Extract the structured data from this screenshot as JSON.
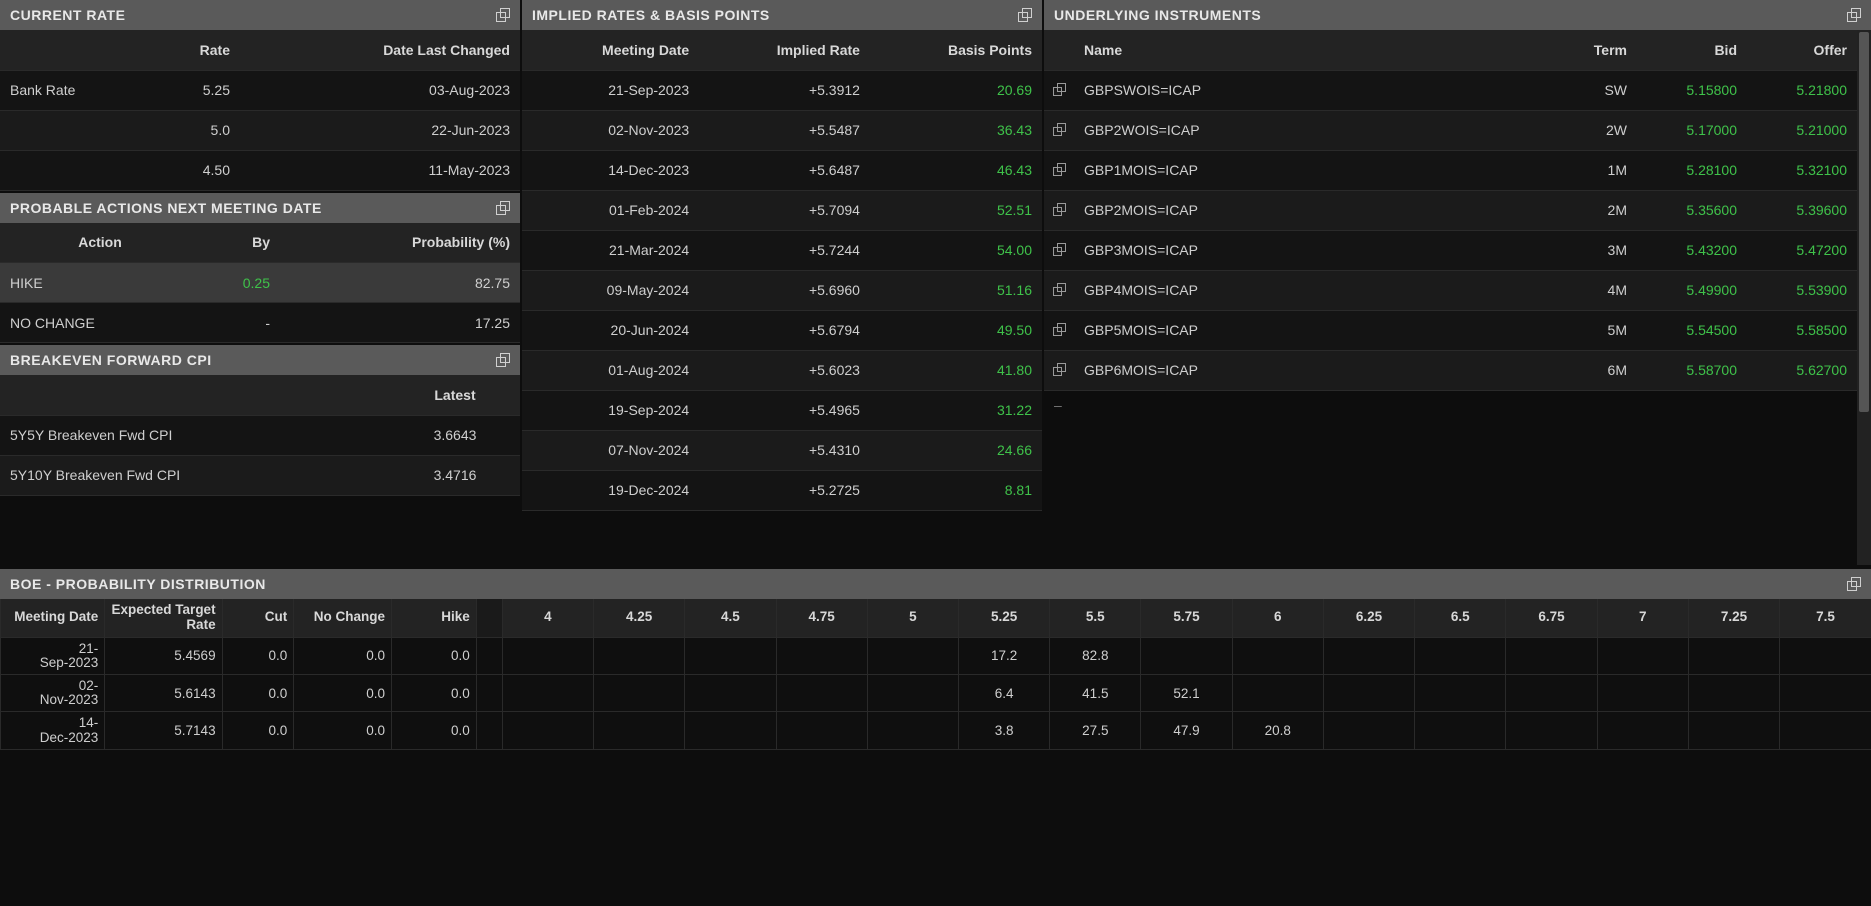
{
  "colors": {
    "bg": "#0d0d0d",
    "panelHeader": "#5a5a5a",
    "headerRow": "#232323",
    "row": "#141414",
    "rowAlt": "#1b1b1b",
    "rowHighlight": "#3a3a3a",
    "text": "#c8c8c8",
    "positive": "#3fc24a"
  },
  "currentRate": {
    "title": "CURRENT RATE",
    "headers": {
      "name": "",
      "rate": "Rate",
      "date": "Date Last Changed"
    },
    "rows": [
      {
        "name": "Bank Rate",
        "rate": "5.25",
        "date": "03-Aug-2023"
      },
      {
        "name": "",
        "rate": "5.0",
        "date": "22-Jun-2023"
      },
      {
        "name": "",
        "rate": "4.50",
        "date": "11-May-2023"
      }
    ]
  },
  "probableActions": {
    "title": "PROBABLE ACTIONS NEXT MEETING DATE",
    "headers": {
      "action": "Action",
      "by": "By",
      "prob": "Probability (%)"
    },
    "rows": [
      {
        "action": "HIKE",
        "by": "0.25",
        "prob": "82.75",
        "highlight": true,
        "byPositive": true
      },
      {
        "action": "NO CHANGE",
        "by": "-",
        "prob": "17.25"
      }
    ]
  },
  "breakeven": {
    "title": "BREAKEVEN FORWARD CPI",
    "headers": {
      "name": "",
      "latest": "Latest"
    },
    "rows": [
      {
        "name": "5Y5Y Breakeven Fwd CPI",
        "latest": "3.6643"
      },
      {
        "name": "5Y10Y Breakeven Fwd CPI",
        "latest": "3.4716"
      }
    ]
  },
  "implied": {
    "title": "IMPLIED RATES & BASIS POINTS",
    "headers": {
      "date": "Meeting Date",
      "rate": "Implied Rate",
      "bp": "Basis Points"
    },
    "rows": [
      {
        "date": "21-Sep-2023",
        "rate": "+5.3912",
        "bp": "20.69"
      },
      {
        "date": "02-Nov-2023",
        "rate": "+5.5487",
        "bp": "36.43"
      },
      {
        "date": "14-Dec-2023",
        "rate": "+5.6487",
        "bp": "46.43"
      },
      {
        "date": "01-Feb-2024",
        "rate": "+5.7094",
        "bp": "52.51"
      },
      {
        "date": "21-Mar-2024",
        "rate": "+5.7244",
        "bp": "54.00"
      },
      {
        "date": "09-May-2024",
        "rate": "+5.6960",
        "bp": "51.16"
      },
      {
        "date": "20-Jun-2024",
        "rate": "+5.6794",
        "bp": "49.50"
      },
      {
        "date": "01-Aug-2024",
        "rate": "+5.6023",
        "bp": "41.80"
      },
      {
        "date": "19-Sep-2024",
        "rate": "+5.4965",
        "bp": "31.22"
      },
      {
        "date": "07-Nov-2024",
        "rate": "+5.4310",
        "bp": "24.66"
      },
      {
        "date": "19-Dec-2024",
        "rate": "+5.2725",
        "bp": "8.81"
      }
    ]
  },
  "underlying": {
    "title": "UNDERLYING INSTRUMENTS",
    "headers": {
      "icon": "",
      "name": "Name",
      "term": "Term",
      "bid": "Bid",
      "offer": "Offer"
    },
    "rows": [
      {
        "name": "GBPSWOIS=ICAP",
        "term": "SW",
        "bid": "5.15800",
        "offer": "5.21800"
      },
      {
        "name": "GBP2WOIS=ICAP",
        "term": "2W",
        "bid": "5.17000",
        "offer": "5.21000"
      },
      {
        "name": "GBP1MOIS=ICAP",
        "term": "1M",
        "bid": "5.28100",
        "offer": "5.32100"
      },
      {
        "name": "GBP2MOIS=ICAP",
        "term": "2M",
        "bid": "5.35600",
        "offer": "5.39600"
      },
      {
        "name": "GBP3MOIS=ICAP",
        "term": "3M",
        "bid": "5.43200",
        "offer": "5.47200"
      },
      {
        "name": "GBP4MOIS=ICAP",
        "term": "4M",
        "bid": "5.49900",
        "offer": "5.53900"
      },
      {
        "name": "GBP5MOIS=ICAP",
        "term": "5M",
        "bid": "5.54500",
        "offer": "5.58500"
      },
      {
        "name": "GBP6MOIS=ICAP",
        "term": "6M",
        "bid": "5.58700",
        "offer": "5.62700"
      }
    ]
  },
  "probDist": {
    "title": "BOE - PROBABILITY DISTRIBUTION",
    "headers": {
      "date": "Meeting Date",
      "expected": "Expected Target Rate",
      "cut": "Cut",
      "noChange": "No Change",
      "hike": "Hike"
    },
    "rateCols": [
      "4",
      "4.25",
      "4.5",
      "4.75",
      "5",
      "5.25",
      "5.5",
      "5.75",
      "6",
      "6.25",
      "6.5",
      "6.75",
      "7",
      "7.25",
      "7.5"
    ],
    "rows": [
      {
        "date": "21-Sep-2023",
        "expected": "5.4569",
        "cut": "0.0",
        "noChange": "0.0",
        "hike": "0.0",
        "cells": [
          "",
          "",
          "",
          "",
          "",
          "17.2",
          "82.8",
          "",
          "",
          "",
          "",
          "",
          "",
          "",
          ""
        ]
      },
      {
        "date": "02-Nov-2023",
        "expected": "5.6143",
        "cut": "0.0",
        "noChange": "0.0",
        "hike": "0.0",
        "cells": [
          "",
          "",
          "",
          "",
          "",
          "6.4",
          "41.5",
          "52.1",
          "",
          "",
          "",
          "",
          "",
          "",
          ""
        ]
      },
      {
        "date": "14-Dec-2023",
        "expected": "5.7143",
        "cut": "0.0",
        "noChange": "0.0",
        "hike": "0.0",
        "cells": [
          "",
          "",
          "",
          "",
          "",
          "3.8",
          "27.5",
          "47.9",
          "20.8",
          "",
          "",
          "",
          "",
          "",
          ""
        ]
      }
    ]
  }
}
